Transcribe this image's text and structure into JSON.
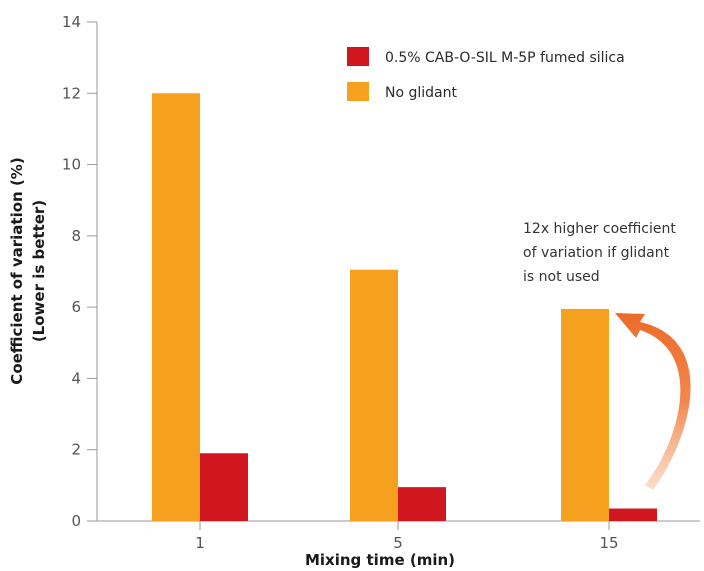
{
  "chart_data": {
    "type": "bar",
    "title": "",
    "xlabel": "Mixing time (min)",
    "ylabel_lines": [
      "Coefficient of variation (%)",
      "(Lower is better)"
    ],
    "categories": [
      "1",
      "5",
      "15"
    ],
    "ylim": [
      0,
      14
    ],
    "yticks": [
      0,
      2,
      4,
      6,
      8,
      10,
      12,
      14
    ],
    "grid": false,
    "legend_position": "top-right",
    "series": [
      {
        "name": "No glidant",
        "color": "#f5a01e",
        "values": [
          12.0,
          7.05,
          5.95
        ]
      },
      {
        "name": "0.5% CAB-O-SIL M-5P fumed silica",
        "color": "#d0161f",
        "values": [
          1.9,
          0.95,
          0.35
        ]
      }
    ],
    "legend_order": [
      1,
      0
    ],
    "annotation": {
      "lines": [
        "12x higher coefficient",
        "of variation if glidant",
        "is not used"
      ],
      "arrow_color": "#f07a3a"
    }
  }
}
